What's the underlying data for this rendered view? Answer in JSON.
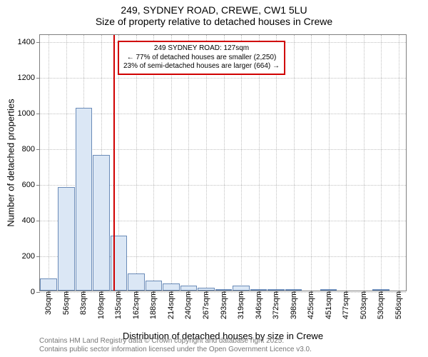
{
  "title": {
    "line1": "249, SYDNEY ROAD, CREWE, CW1 5LU",
    "line2": "Size of property relative to detached houses in Crewe"
  },
  "axes": {
    "ylabel": "Number of detached properties",
    "xlabel": "Distribution of detached houses by size in Crewe",
    "ylim_max": 1440,
    "yticks": [
      0,
      200,
      400,
      600,
      800,
      1000,
      1200,
      1400
    ],
    "xtick_labels": [
      "30sqm",
      "56sqm",
      "83sqm",
      "109sqm",
      "135sqm",
      "162sqm",
      "188sqm",
      "214sqm",
      "240sqm",
      "267sqm",
      "293sqm",
      "319sqm",
      "346sqm",
      "372sqm",
      "398sqm",
      "425sqm",
      "451sqm",
      "477sqm",
      "503sqm",
      "530sqm",
      "556sqm"
    ],
    "bar_fill": "#dbe7f5",
    "bar_stroke": "#6a8bb8",
    "grid_color": "#c0c0c0",
    "axis_color": "#808080"
  },
  "bars": [
    70,
    580,
    1025,
    760,
    310,
    95,
    55,
    40,
    30,
    15,
    5,
    30,
    5,
    5,
    5,
    0,
    5,
    0,
    0,
    5,
    0
  ],
  "marker": {
    "color": "#d00000",
    "position_category_index": 3.7
  },
  "annotation": {
    "line1": "249 SYDNEY ROAD: 127sqm",
    "line2": "← 77% of detached houses are smaller (2,250)",
    "line3": "23% of semi-detached houses are larger (664) →"
  },
  "footer": {
    "line1": "Contains HM Land Registry data © Crown copyright and database right 2025.",
    "line2": "Contains public sector information licensed under the Open Government Licence v3.0."
  }
}
